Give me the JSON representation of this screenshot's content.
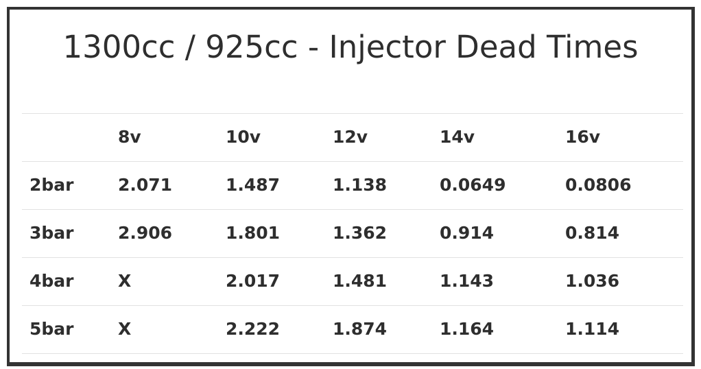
{
  "header": {
    "title": "1300cc / 925cc - Injector Dead Times"
  },
  "table": {
    "columns": [
      "8v",
      "10v",
      "12v",
      "14v",
      "16v"
    ],
    "rows": [
      {
        "label": "2bar",
        "cells": [
          "2.071",
          "1.487",
          "1.138",
          "0.0649",
          "0.0806"
        ]
      },
      {
        "label": "3bar",
        "cells": [
          "2.906",
          "1.801",
          "1.362",
          "0.914",
          "0.814"
        ]
      },
      {
        "label": "4bar",
        "cells": [
          "X",
          "2.017",
          "1.481",
          "1.143",
          "1.036"
        ]
      },
      {
        "label": "5bar",
        "cells": [
          "X",
          "2.222",
          "1.874",
          "1.164",
          "1.114"
        ]
      }
    ]
  }
}
